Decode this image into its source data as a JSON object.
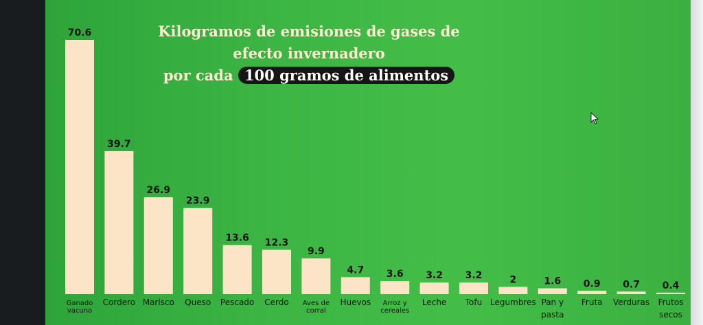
{
  "title": {
    "line1": "Kilogramos de emisiones de gases de efecto invernadero",
    "line2_prefix": "por cada ",
    "line2_highlight": "100 gramos de alimentos"
  },
  "chart_data": {
    "type": "bar",
    "categories": [
      [
        "Ganado",
        "vacuno"
      ],
      [
        "Cordero"
      ],
      [
        "Marisco"
      ],
      [
        "Queso"
      ],
      [
        "Pescado"
      ],
      [
        "Cerdo"
      ],
      [
        "Aves de",
        "corral"
      ],
      [
        "Huevos"
      ],
      [
        "Arroz y",
        "cereales"
      ],
      [
        "Leche"
      ],
      [
        "Tofu"
      ],
      [
        "Legumbres"
      ],
      [
        "Pan y",
        "pasta"
      ],
      [
        "Fruta"
      ],
      [
        "Verduras"
      ],
      [
        "Frutos",
        "secos"
      ]
    ],
    "values": [
      70.6,
      39.7,
      26.9,
      23.9,
      13.6,
      12.3,
      9.9,
      4.7,
      3.6,
      3.2,
      3.2,
      2,
      1.6,
      0.9,
      0.7,
      0.4
    ],
    "labels": [
      "70.6",
      "39.7",
      "26.9",
      "23.9",
      "13.6",
      "12.3",
      "9.9",
      "4.7",
      "3.6",
      "3.2",
      "3.2",
      "2",
      "1.6",
      "0.9",
      "0.7",
      "0.4"
    ],
    "bar_color": "#fbe5c6",
    "background_color": "#3cb544",
    "ylim": [
      0,
      70.6
    ],
    "grid": false,
    "legend": "none"
  }
}
